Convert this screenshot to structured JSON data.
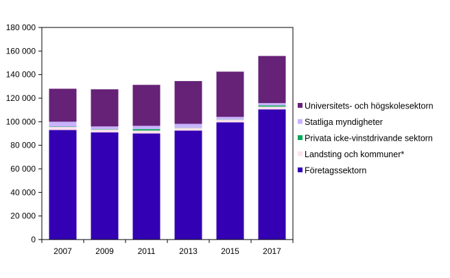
{
  "chart_data": {
    "type": "bar",
    "stacked": true,
    "categories": [
      "2007",
      "2009",
      "2011",
      "2013",
      "2015",
      "2017"
    ],
    "ylim": [
      0,
      180000
    ],
    "yticks": [
      0,
      20000,
      40000,
      60000,
      80000,
      100000,
      120000,
      140000,
      160000,
      180000
    ],
    "ytick_labels": [
      "0",
      "20 000",
      "40 000",
      "60 000",
      "80 000",
      "100 000",
      "120 000",
      "140 000",
      "160 000",
      "180 000"
    ],
    "grid": false,
    "legend_position": "right",
    "series": [
      {
        "name": "Företagssektorn",
        "color": "#3300b3",
        "values": [
          93000,
          91000,
          90000,
          92500,
          99500,
          110500
        ]
      },
      {
        "name": "Landsting och kommuner*",
        "color": "#ffe0ec",
        "values": [
          2500,
          2500,
          2500,
          2300,
          2300,
          2300
        ]
      },
      {
        "name": "Privata icke-vinstdrivande sektorn",
        "color": "#00aa55",
        "values": [
          300,
          300,
          1200,
          200,
          200,
          1000
        ]
      },
      {
        "name": "Statliga myndigheter",
        "color": "#c9b3ff",
        "values": [
          4200,
          2200,
          2800,
          3200,
          2100,
          2000
        ]
      },
      {
        "name": "Universitets- och högskolesektorn",
        "color": "#662277",
        "values": [
          28000,
          31500,
          34800,
          36300,
          38400,
          40000
        ]
      }
    ],
    "legend_order": [
      4,
      3,
      2,
      1,
      0
    ]
  }
}
